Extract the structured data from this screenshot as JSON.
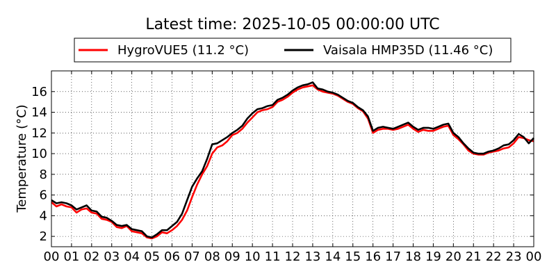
{
  "chart_data": {
    "type": "line",
    "title": "Latest time: 2025-10-05 00:00:00 UTC",
    "xlabel": "",
    "ylabel": "Temperature (°C)",
    "xlim": [
      0,
      24
    ],
    "ylim": [
      1,
      18
    ],
    "grid": true,
    "legend_position": "top",
    "x_ticks": [
      0,
      1,
      2,
      3,
      4,
      5,
      6,
      7,
      8,
      9,
      10,
      11,
      12,
      13,
      14,
      15,
      16,
      17,
      18,
      19,
      20,
      21,
      22,
      23,
      24
    ],
    "x_tick_labels": [
      "00",
      "01",
      "02",
      "03",
      "04",
      "05",
      "06",
      "07",
      "08",
      "09",
      "10",
      "11",
      "12",
      "13",
      "14",
      "15",
      "16",
      "17",
      "18",
      "19",
      "20",
      "21",
      "22",
      "23",
      "00"
    ],
    "y_ticks": [
      2,
      4,
      6,
      8,
      10,
      12,
      14,
      16
    ],
    "y_tick_labels": [
      "2",
      "4",
      "6",
      "8",
      "10",
      "12",
      "14",
      "16"
    ],
    "series": [
      {
        "name": "HygroVUE5 (11.2 °C)",
        "color": "#ff0000",
        "x": [
          0,
          0.25,
          0.5,
          0.75,
          1,
          1.25,
          1.5,
          1.75,
          2,
          2.25,
          2.5,
          2.75,
          3,
          3.25,
          3.5,
          3.75,
          4,
          4.25,
          4.5,
          4.75,
          5,
          5.25,
          5.5,
          5.75,
          6,
          6.25,
          6.5,
          6.75,
          7,
          7.25,
          7.5,
          7.75,
          8,
          8.25,
          8.5,
          8.75,
          9,
          9.25,
          9.5,
          9.75,
          10,
          10.25,
          10.5,
          10.75,
          11,
          11.25,
          11.5,
          11.75,
          12,
          12.25,
          12.5,
          12.75,
          13,
          13.25,
          13.5,
          13.75,
          14,
          14.25,
          14.5,
          14.75,
          15,
          15.25,
          15.5,
          15.75,
          16,
          16.25,
          16.5,
          16.75,
          17,
          17.25,
          17.5,
          17.75,
          18,
          18.25,
          18.5,
          18.75,
          19,
          19.25,
          19.5,
          19.75,
          20,
          20.25,
          20.5,
          20.75,
          21,
          21.25,
          21.5,
          21.75,
          22,
          22.25,
          22.5,
          22.75,
          23,
          23.25,
          23.5,
          23.75,
          24
        ],
        "values": [
          5.3,
          4.9,
          5.1,
          4.9,
          4.8,
          4.3,
          4.6,
          4.7,
          4.3,
          4.2,
          3.7,
          3.6,
          3.4,
          2.9,
          2.8,
          3.0,
          2.5,
          2.4,
          2.3,
          1.9,
          1.8,
          2.0,
          2.4,
          2.3,
          2.6,
          3.0,
          3.6,
          4.5,
          5.8,
          7.0,
          8.0,
          8.8,
          10.0,
          10.6,
          10.8,
          11.2,
          11.8,
          12.0,
          12.4,
          13.0,
          13.5,
          14.0,
          14.2,
          14.3,
          14.5,
          15.0,
          15.2,
          15.5,
          15.9,
          16.2,
          16.4,
          16.5,
          16.6,
          16.2,
          16.0,
          15.9,
          15.8,
          15.6,
          15.3,
          15.0,
          14.8,
          14.4,
          14.1,
          13.4,
          12.0,
          12.3,
          12.4,
          12.4,
          12.3,
          12.4,
          12.6,
          12.8,
          12.4,
          12.1,
          12.3,
          12.2,
          12.2,
          12.4,
          12.6,
          12.7,
          11.8,
          11.4,
          10.9,
          10.3,
          10.0,
          9.9,
          9.9,
          10.1,
          10.2,
          10.3,
          10.5,
          10.6,
          11.0,
          11.6,
          11.5,
          11.3,
          11.2
        ]
      },
      {
        "name": "Vaisala HMP35D (11.46 °C)",
        "color": "#000000",
        "x": [
          0,
          0.25,
          0.5,
          0.75,
          1,
          1.25,
          1.5,
          1.75,
          2,
          2.25,
          2.5,
          2.75,
          3,
          3.25,
          3.5,
          3.75,
          4,
          4.25,
          4.5,
          4.75,
          5,
          5.25,
          5.5,
          5.75,
          6,
          6.25,
          6.5,
          6.75,
          7,
          7.25,
          7.5,
          7.75,
          8,
          8.25,
          8.5,
          8.75,
          9,
          9.25,
          9.5,
          9.75,
          10,
          10.25,
          10.5,
          10.75,
          11,
          11.25,
          11.5,
          11.75,
          12,
          12.25,
          12.5,
          12.75,
          13,
          13.25,
          13.5,
          13.75,
          14,
          14.25,
          14.5,
          14.75,
          15,
          15.25,
          15.5,
          15.75,
          16,
          16.25,
          16.5,
          16.75,
          17,
          17.25,
          17.5,
          17.75,
          18,
          18.25,
          18.5,
          18.75,
          19,
          19.25,
          19.5,
          19.75,
          20,
          20.25,
          20.5,
          20.75,
          21,
          21.25,
          21.5,
          21.75,
          22,
          22.25,
          22.5,
          22.75,
          23,
          23.25,
          23.5,
          23.75,
          24
        ],
        "values": [
          5.5,
          5.2,
          5.3,
          5.2,
          5.0,
          4.6,
          4.8,
          5.0,
          4.5,
          4.4,
          3.9,
          3.8,
          3.5,
          3.1,
          3.0,
          3.1,
          2.7,
          2.6,
          2.5,
          2.0,
          1.9,
          2.2,
          2.6,
          2.6,
          3.0,
          3.4,
          4.2,
          5.5,
          6.8,
          7.6,
          8.3,
          9.5,
          10.9,
          11.0,
          11.3,
          11.6,
          12.0,
          12.3,
          12.7,
          13.4,
          13.9,
          14.3,
          14.4,
          14.6,
          14.7,
          15.2,
          15.4,
          15.7,
          16.1,
          16.4,
          16.6,
          16.7,
          16.9,
          16.3,
          16.2,
          16.0,
          15.9,
          15.7,
          15.4,
          15.1,
          14.9,
          14.5,
          14.2,
          13.6,
          12.2,
          12.5,
          12.6,
          12.5,
          12.4,
          12.6,
          12.8,
          13.0,
          12.6,
          12.3,
          12.5,
          12.5,
          12.4,
          12.6,
          12.8,
          12.9,
          12.0,
          11.6,
          11.0,
          10.5,
          10.1,
          10.0,
          10.0,
          10.2,
          10.3,
          10.5,
          10.8,
          10.9,
          11.3,
          11.9,
          11.6,
          11.0,
          11.5
        ]
      }
    ]
  }
}
